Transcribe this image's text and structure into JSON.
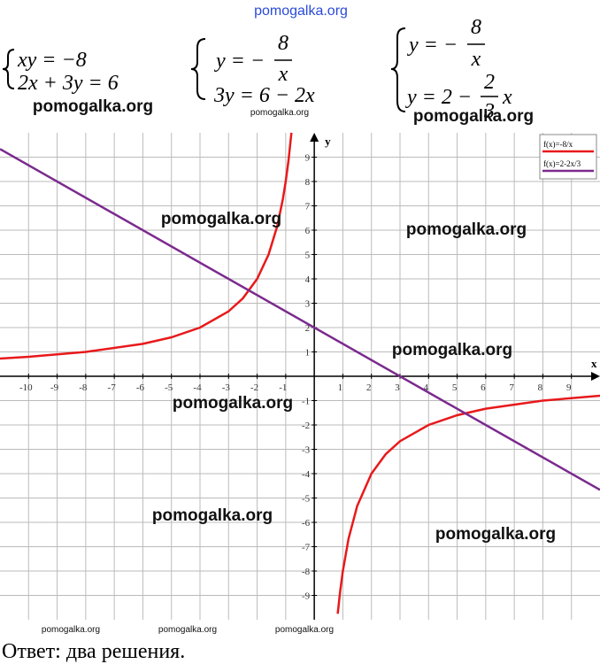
{
  "equations": [
    {
      "lines": [
        {
          "text": "xy = −8"
        },
        {
          "text": "2x + 3y = 6"
        }
      ]
    },
    {
      "lines": [
        {
          "lhs": "y = −",
          "num": "8",
          "den": "x"
        },
        {
          "text": "3y = 6 − 2x"
        }
      ]
    },
    {
      "lines": [
        {
          "lhs": "y = −",
          "num": "8",
          "den": "x"
        },
        {
          "lhs": "y = 2 −",
          "num": "2",
          "den": "3",
          "rhs": "x"
        }
      ]
    }
  ],
  "watermarks": [
    "pomogalka.org",
    "pomogalka.org",
    "pomogalka.org",
    "pomogalka.org",
    "pomogalka.org",
    "pomogalka.org",
    "pomogalka.org",
    "pomogalka.org",
    "pomogalka.org",
    "pomogalka.org",
    "pomogalka.org",
    "pomogalka.org",
    "pomogalka.org"
  ],
  "answer": "Ответ: два решения.",
  "chart_data": {
    "type": "line",
    "xlabel": "x",
    "ylabel": "y",
    "xlim": [
      -11,
      10
    ],
    "ylim": [
      -10,
      10
    ],
    "xticks": [
      -10,
      -9,
      -8,
      -7,
      -6,
      -5,
      -4,
      -3,
      -2,
      -1,
      1,
      2,
      3,
      4,
      5,
      6,
      7,
      8,
      9
    ],
    "yticks": [
      -9,
      -8,
      -7,
      -6,
      -5,
      -4,
      -3,
      -2,
      -1,
      1,
      2,
      3,
      4,
      5,
      6,
      7,
      8,
      9
    ],
    "grid": true,
    "legend": "top-right",
    "series": [
      {
        "name": "f(x)=-8/x",
        "color": "#e8191b",
        "x": [
          -11,
          -10,
          -8,
          -6,
          -5,
          -4,
          -3,
          -2.5,
          -2,
          -1.6,
          -1.3,
          -1.1,
          -1,
          -0.9,
          -0.8,
          0,
          0.82,
          0.9,
          1,
          1.2,
          1.5,
          2,
          2.5,
          3,
          4,
          5,
          6,
          8,
          10
        ],
        "values": [
          0.727,
          0.8,
          1,
          1.333,
          1.6,
          2,
          2.667,
          3.2,
          4,
          5,
          6.154,
          7.273,
          8,
          8.889,
          10,
          null,
          -9.756,
          -8.889,
          -8,
          -6.667,
          -5.333,
          -4,
          -3.2,
          -2.667,
          -2,
          -1.6,
          -1.333,
          -1,
          -0.8
        ]
      },
      {
        "name": "f(x)=2-2x/3",
        "color": "#7b2a8e",
        "x": [
          -11,
          10
        ],
        "values": [
          9.333,
          -4.667
        ]
      }
    ]
  }
}
